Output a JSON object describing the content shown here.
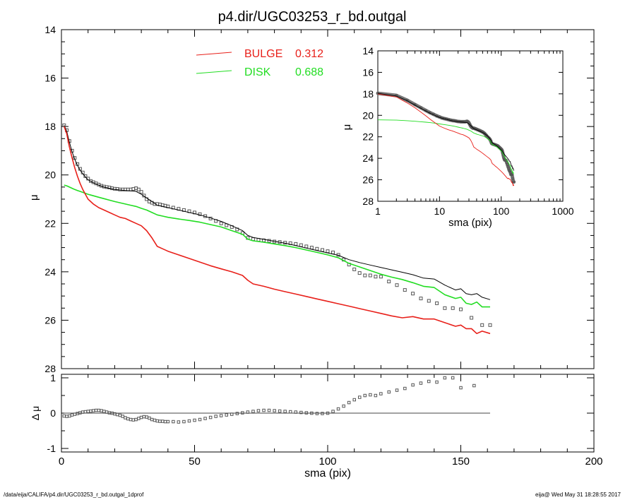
{
  "title": "p4.dir/UGC03253_r_bd.outgal",
  "footer_left": "/data/eija/CALIFA/p4.dir/UGC03253_r_bd.outgal_1dprof",
  "footer_right": "eija@  Wed May 31 18:28:55 2017",
  "colors": {
    "bulge": "#e8201a",
    "disk": "#22dd22",
    "total": "#000000",
    "data": "#555555",
    "frame": "#000000"
  },
  "chart_data": [
    {
      "type": "scatter",
      "panel": "main",
      "xlabel": "sma (pix)",
      "ylabel": "μ",
      "xlim": [
        0,
        200
      ],
      "ylim": [
        28,
        14
      ],
      "xticks": [
        0,
        50,
        100,
        150,
        200
      ],
      "yticks": [
        14,
        16,
        18,
        20,
        22,
        24,
        26,
        28
      ],
      "x_tick_labels": [
        "0",
        "50",
        "100",
        "150",
        "200"
      ],
      "y_tick_labels": [
        "14",
        "16",
        "18",
        "20",
        "22",
        "24",
        "26",
        "28"
      ],
      "legend": [
        {
          "name": "BULGE",
          "value": "0.312",
          "color": "#e8201a"
        },
        {
          "name": "DISK",
          "value": "0.688",
          "color": "#22dd22"
        }
      ],
      "legend_position": "top-center",
      "series": [
        {
          "name": "data",
          "style": "open-squares",
          "x": [
            1,
            2,
            3,
            4,
            5,
            6,
            7,
            8,
            9,
            10,
            11,
            12,
            13,
            14,
            15,
            16,
            17,
            18,
            19,
            20,
            21,
            22,
            23,
            24,
            25,
            26,
            27,
            28,
            29,
            30,
            31,
            32,
            33,
            34,
            35,
            36,
            37,
            38,
            39,
            40,
            42,
            44,
            46,
            48,
            50,
            52,
            54,
            56,
            58,
            60,
            62,
            64,
            66,
            68,
            70,
            72,
            74,
            76,
            78,
            80,
            82,
            84,
            86,
            88,
            90,
            92,
            94,
            96,
            98,
            100,
            102,
            104,
            106,
            108,
            110,
            112,
            114,
            116,
            118,
            120,
            123,
            126,
            129,
            132,
            135,
            138,
            141,
            144,
            147,
            150,
            154,
            158,
            161
          ],
          "y": [
            17.95,
            18.15,
            18.6,
            19.0,
            19.3,
            19.55,
            19.75,
            19.9,
            20.05,
            20.15,
            20.25,
            20.3,
            20.35,
            20.4,
            20.45,
            20.48,
            20.5,
            20.52,
            20.55,
            20.57,
            20.58,
            20.6,
            20.6,
            20.6,
            20.6,
            20.6,
            20.58,
            20.55,
            20.6,
            20.7,
            20.85,
            21.0,
            21.1,
            21.15,
            21.2,
            21.2,
            21.22,
            21.25,
            21.27,
            21.3,
            21.35,
            21.4,
            21.45,
            21.5,
            21.55,
            21.62,
            21.7,
            21.8,
            21.9,
            22.0,
            22.08,
            22.15,
            22.25,
            22.4,
            22.6,
            22.65,
            22.68,
            22.7,
            22.72,
            22.75,
            22.77,
            22.8,
            22.82,
            22.85,
            22.9,
            22.95,
            23.0,
            23.05,
            23.1,
            23.15,
            23.2,
            23.3,
            23.5,
            23.7,
            23.9,
            24.05,
            24.15,
            24.15,
            24.2,
            24.2,
            24.4,
            24.55,
            24.75,
            24.9,
            25.1,
            25.2,
            25.3,
            25.5,
            25.5,
            25.55,
            25.9,
            26.2,
            26.2
          ]
        },
        {
          "name": "total",
          "style": "line",
          "x": [
            1,
            2,
            3,
            4,
            5,
            6,
            7,
            8,
            9,
            10,
            12,
            14,
            16,
            18,
            20,
            22,
            24,
            26,
            28,
            30,
            32,
            34,
            36,
            38,
            40,
            44,
            48,
            52,
            56,
            60,
            64,
            68,
            70,
            72,
            76,
            80,
            84,
            88,
            92,
            96,
            100,
            104,
            108,
            112,
            116,
            120,
            124,
            128,
            132,
            136,
            140,
            144,
            148,
            150,
            152,
            154,
            156,
            158,
            161
          ],
          "y": [
            17.95,
            18.2,
            18.65,
            19.05,
            19.35,
            19.6,
            19.8,
            19.95,
            20.08,
            20.2,
            20.32,
            20.42,
            20.5,
            20.55,
            20.6,
            20.62,
            20.64,
            20.66,
            20.68,
            20.8,
            20.95,
            21.1,
            21.25,
            21.3,
            21.35,
            21.45,
            21.55,
            21.65,
            21.78,
            21.92,
            22.1,
            22.3,
            22.5,
            22.58,
            22.66,
            22.74,
            22.82,
            22.92,
            23.02,
            23.12,
            23.22,
            23.32,
            23.5,
            23.62,
            23.72,
            23.82,
            23.92,
            24.02,
            24.12,
            24.26,
            24.3,
            24.55,
            24.75,
            24.7,
            24.9,
            24.95,
            24.9,
            25.05,
            25.15
          ]
        },
        {
          "name": "bulge",
          "style": "line",
          "x": [
            1,
            2,
            3,
            4,
            5,
            6,
            7,
            8,
            9,
            10,
            12,
            14,
            16,
            18,
            20,
            22,
            24,
            26,
            28,
            30,
            32,
            34,
            36,
            38,
            40,
            44,
            48,
            52,
            56,
            60,
            64,
            68,
            70,
            72,
            76,
            80,
            84,
            88,
            92,
            96,
            100,
            104,
            108,
            112,
            116,
            120,
            124,
            128,
            132,
            136,
            140,
            144,
            148,
            150,
            152,
            154,
            156,
            158,
            161
          ],
          "y": [
            18.0,
            18.3,
            18.85,
            19.3,
            19.7,
            20.05,
            20.35,
            20.6,
            20.8,
            21.0,
            21.2,
            21.35,
            21.45,
            21.55,
            21.65,
            21.75,
            21.8,
            21.9,
            22.0,
            22.1,
            22.3,
            22.6,
            22.95,
            23.05,
            23.15,
            23.3,
            23.45,
            23.6,
            23.75,
            23.88,
            24.0,
            24.15,
            24.35,
            24.5,
            24.6,
            24.72,
            24.82,
            24.92,
            25.02,
            25.12,
            25.22,
            25.32,
            25.42,
            25.52,
            25.62,
            25.72,
            25.82,
            25.9,
            25.85,
            25.95,
            25.95,
            26.1,
            26.25,
            26.2,
            26.35,
            26.35,
            26.55,
            26.45,
            26.55
          ]
        },
        {
          "name": "disk",
          "style": "line",
          "x": [
            1,
            2,
            3,
            4,
            5,
            6,
            7,
            8,
            9,
            10,
            12,
            14,
            16,
            18,
            20,
            22,
            24,
            26,
            28,
            30,
            32,
            34,
            36,
            38,
            40,
            44,
            48,
            52,
            56,
            60,
            64,
            68,
            70,
            72,
            76,
            80,
            84,
            88,
            92,
            96,
            100,
            104,
            108,
            112,
            116,
            120,
            124,
            128,
            132,
            136,
            140,
            144,
            148,
            150,
            152,
            154,
            156,
            158,
            161
          ],
          "y": [
            20.42,
            20.45,
            20.5,
            20.55,
            20.6,
            20.64,
            20.68,
            20.72,
            20.76,
            20.8,
            20.86,
            20.92,
            20.98,
            21.04,
            21.1,
            21.15,
            21.2,
            21.25,
            21.3,
            21.38,
            21.45,
            21.55,
            21.65,
            21.7,
            21.75,
            21.82,
            21.88,
            21.95,
            22.05,
            22.15,
            22.3,
            22.45,
            22.65,
            22.72,
            22.78,
            22.85,
            22.92,
            23.0,
            23.1,
            23.2,
            23.3,
            23.42,
            23.65,
            23.8,
            23.95,
            24.1,
            24.22,
            24.32,
            24.45,
            24.6,
            24.65,
            24.95,
            25.1,
            25.05,
            25.3,
            25.35,
            25.25,
            25.45,
            25.45
          ]
        }
      ]
    },
    {
      "type": "scatter",
      "panel": "residual",
      "xlabel": "sma (pix)",
      "ylabel": "Δ μ",
      "xlim": [
        0,
        200
      ],
      "ylim": [
        -1.1,
        1.1
      ],
      "yticks": [
        -1,
        0,
        1
      ],
      "y_tick_labels": [
        "-1",
        "0",
        "1"
      ],
      "series": [
        {
          "name": "residual",
          "style": "open-squares",
          "x": [
            1,
            2,
            3,
            4,
            5,
            6,
            7,
            8,
            9,
            10,
            11,
            12,
            13,
            14,
            15,
            16,
            17,
            18,
            19,
            20,
            21,
            22,
            23,
            24,
            25,
            26,
            27,
            28,
            29,
            30,
            31,
            32,
            33,
            34,
            35,
            36,
            37,
            38,
            39,
            40,
            42,
            44,
            46,
            48,
            50,
            52,
            54,
            56,
            58,
            60,
            62,
            64,
            66,
            68,
            70,
            72,
            74,
            76,
            78,
            80,
            82,
            84,
            86,
            88,
            90,
            92,
            94,
            96,
            98,
            100,
            102,
            104,
            106,
            108,
            110,
            112,
            114,
            116,
            118,
            120,
            123,
            126,
            129,
            132,
            135,
            138,
            141,
            144,
            147,
            150,
            155
          ],
          "y": [
            -0.08,
            -0.09,
            -0.08,
            -0.05,
            -0.03,
            -0.01,
            0.01,
            0.03,
            0.04,
            0.05,
            0.06,
            0.07,
            0.08,
            0.08,
            0.07,
            0.05,
            0.03,
            0.01,
            0.0,
            -0.02,
            -0.04,
            -0.06,
            -0.09,
            -0.13,
            -0.16,
            -0.18,
            -0.19,
            -0.18,
            -0.15,
            -0.12,
            -0.1,
            -0.11,
            -0.14,
            -0.18,
            -0.2,
            -0.22,
            -0.23,
            -0.23,
            -0.24,
            -0.24,
            -0.24,
            -0.25,
            -0.24,
            -0.22,
            -0.2,
            -0.18,
            -0.15,
            -0.12,
            -0.09,
            -0.07,
            -0.05,
            -0.03,
            -0.01,
            0.01,
            0.03,
            0.05,
            0.07,
            0.08,
            0.08,
            0.07,
            0.06,
            0.05,
            0.04,
            0.03,
            0.02,
            0.01,
            0.0,
            -0.01,
            -0.01,
            0.0,
            0.05,
            0.12,
            0.2,
            0.3,
            0.38,
            0.45,
            0.5,
            0.52,
            0.5,
            0.55,
            0.6,
            0.65,
            0.7,
            0.8,
            0.85,
            0.9,
            0.88,
            1.0,
            1.0,
            0.72,
            0.78
          ]
        },
        {
          "name": "zero line",
          "style": "line",
          "x": [
            1,
            161
          ],
          "y": [
            0,
            0
          ]
        }
      ]
    },
    {
      "type": "scatter",
      "panel": "inset",
      "xscale": "log",
      "xlabel": "sma (pix)",
      "ylabel": "μ",
      "xlim": [
        1,
        1000
      ],
      "ylim": [
        28,
        14
      ],
      "x_tick_labels": [
        "1",
        "10",
        "100",
        "1000"
      ],
      "y_tick_labels": [
        "14",
        "16",
        "18",
        "20",
        "22",
        "24",
        "26",
        "28"
      ],
      "series_ref": "main"
    }
  ]
}
